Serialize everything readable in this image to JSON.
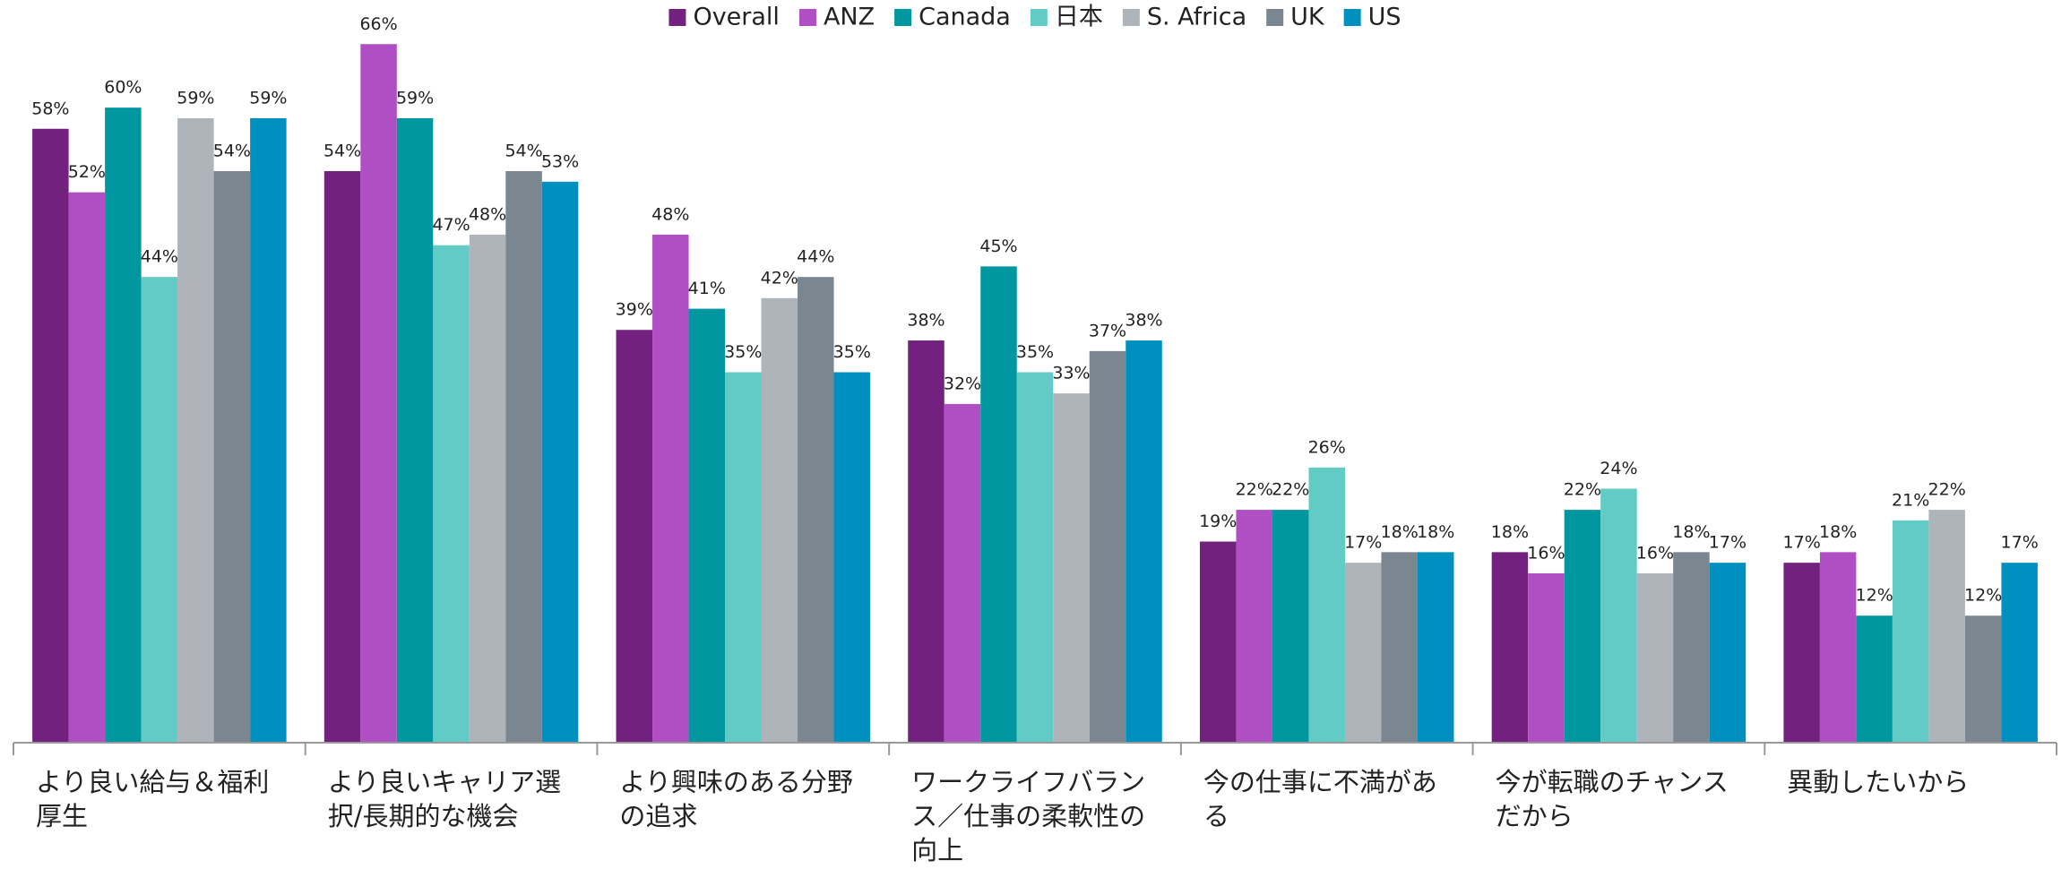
{
  "chart_data": {
    "type": "bar",
    "categories": [
      "より良い給与＆福利厚生",
      "より良いキャリア選択/長期的な機会",
      "より興味のある分野の追求",
      "ワークライフバランス／仕事の柔軟性の向上",
      "今の仕事に不満がある",
      "今が転職のチャンスだから",
      "異動したいから"
    ],
    "series": [
      {
        "name": "Overall",
        "color": "#72217e",
        "values": [
          58,
          54,
          39,
          38,
          19,
          18,
          17
        ],
        "value_labels": [
          "58%",
          "54%",
          "39%",
          "38%",
          "19%",
          "18%",
          "17%"
        ]
      },
      {
        "name": "ANZ",
        "color": "#b04fc4",
        "values": [
          52,
          66,
          48,
          32,
          22,
          16,
          18
        ],
        "value_labels": [
          "52%",
          "66%",
          "48%",
          "32%",
          "22%",
          "16%",
          "18%"
        ]
      },
      {
        "name": "Canada",
        "color": "#0097a1",
        "values": [
          60,
          59,
          41,
          45,
          22,
          22,
          12
        ],
        "value_labels": [
          "60%",
          "59%",
          "41%",
          "45%",
          "22%",
          "22%",
          "12%"
        ]
      },
      {
        "name": "日本",
        "color": "#62cbc5",
        "values": [
          44,
          47,
          35,
          35,
          26,
          24,
          21
        ],
        "value_labels": [
          "44%",
          "47%",
          "35%",
          "35%",
          "26%",
          "24%",
          "21%"
        ]
      },
      {
        "name": "S. Africa",
        "color": "#aeb4ba",
        "values": [
          59,
          48,
          42,
          33,
          17,
          16,
          22
        ],
        "value_labels": [
          "59%",
          "48%",
          "42%",
          "33%",
          "17%",
          "16%",
          "22%"
        ]
      },
      {
        "name": "UK",
        "color": "#7a8690",
        "values": [
          54,
          54,
          44,
          37,
          18,
          18,
          12
        ],
        "value_labels": [
          "54%",
          "54%",
          "44%",
          "37%",
          "18%",
          "18%",
          "12%"
        ]
      },
      {
        "name": "US",
        "color": "#0090c0",
        "values": [
          59,
          53,
          35,
          38,
          18,
          17,
          17
        ],
        "value_labels": [
          "59%",
          "53%",
          "35%",
          "38%",
          "18%",
          "17%",
          "17%"
        ]
      }
    ],
    "ylim": [
      0,
      70
    ],
    "legend": "top"
  }
}
